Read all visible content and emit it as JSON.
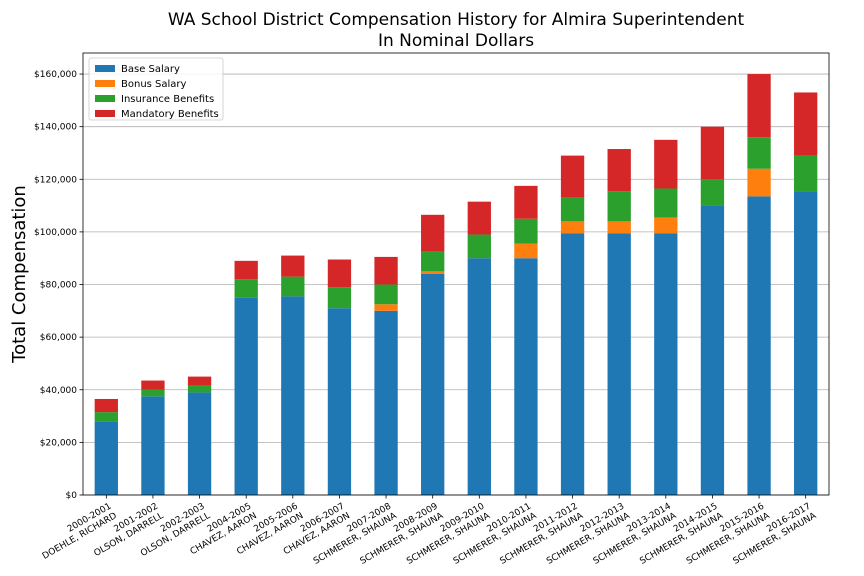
{
  "chart_data": {
    "type": "bar",
    "stacked": true,
    "title": "WA School District Compensation History for Almira Superintendent",
    "subtitle": "In Nominal Dollars",
    "xlabel": "",
    "ylabel": "Total Compensation",
    "ylim": [
      0,
      168000
    ],
    "yticks": [
      0,
      20000,
      40000,
      60000,
      80000,
      100000,
      120000,
      140000,
      160000
    ],
    "ytick_labels": [
      "$0",
      "$20,000",
      "$40,000",
      "$60,000",
      "$80,000",
      "$100,000",
      "$120,000",
      "$140,000",
      "$160,000"
    ],
    "grid": "horizontal",
    "legend_position": "top-left",
    "categories": [
      [
        "2000-2001",
        "DOEHLE, RICHARD"
      ],
      [
        "2001-2002",
        "OLSON, DARRELL"
      ],
      [
        "2002-2003",
        "OLSON, DARRELL"
      ],
      [
        "2004-2005",
        "CHAVEZ, AARON"
      ],
      [
        "2005-2006",
        "CHAVEZ, AARON"
      ],
      [
        "2006-2007",
        "CHAVEZ, AARON"
      ],
      [
        "2007-2008",
        "SCHMERER, SHAUNA"
      ],
      [
        "2008-2009",
        "SCHMERER, SHAUNA"
      ],
      [
        "2009-2010",
        "SCHMERER, SHAUNA"
      ],
      [
        "2010-2011",
        "SCHMERER, SHAUNA"
      ],
      [
        "2011-2012",
        "SCHMERER, SHAUNA"
      ],
      [
        "2012-2013",
        "SCHMERER, SHAUNA"
      ],
      [
        "2013-2014",
        "SCHMERER, SHAUNA"
      ],
      [
        "2014-2015",
        "SCHMERER, SHAUNA"
      ],
      [
        "2015-2016",
        "SCHMERER, SHAUNA"
      ],
      [
        "2016-2017",
        "SCHMERER, SHAUNA"
      ]
    ],
    "series": [
      {
        "name": "Base Salary",
        "color": "#1f77b4",
        "values": [
          28000,
          37500,
          39000,
          75000,
          75500,
          71000,
          70000,
          84000,
          90000,
          90000,
          99500,
          99500,
          99500,
          110000,
          113500,
          115500
        ]
      },
      {
        "name": "Bonus Salary",
        "color": "#ff7f0e",
        "values": [
          0,
          0,
          0,
          0,
          0,
          0,
          2500,
          1000,
          0,
          5500,
          4500,
          4500,
          6000,
          0,
          10500,
          0
        ]
      },
      {
        "name": "Insurance Benefits",
        "color": "#2ca02c",
        "values": [
          3500,
          2500,
          2500,
          7000,
          7500,
          8000,
          7500,
          7500,
          9000,
          9500,
          9000,
          11500,
          11000,
          10000,
          12000,
          13500
        ]
      },
      {
        "name": "Mandatory Benefits",
        "color": "#d62728",
        "values": [
          5000,
          3500,
          3500,
          7000,
          8000,
          10500,
          10500,
          14000,
          12500,
          12500,
          16000,
          16000,
          18500,
          20000,
          24000,
          24000
        ]
      }
    ]
  }
}
